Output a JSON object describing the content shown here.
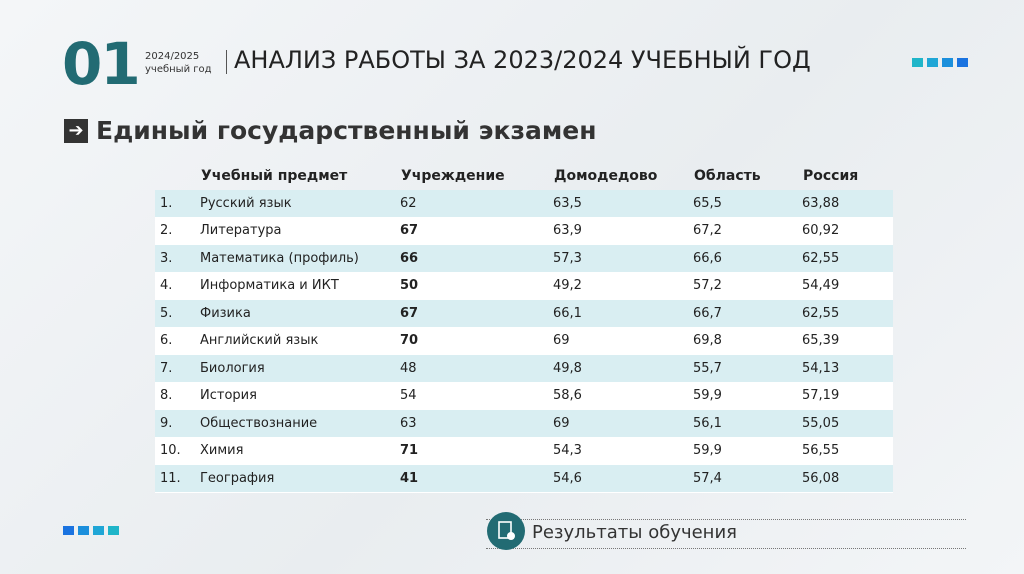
{
  "header": {
    "number": "01",
    "year": "2024/2025",
    "year_caption": "учебный год",
    "title": "АНАЛИЗ РАБОТЫ ЗА 2023/2024 УЧЕБНЫЙ ГОД"
  },
  "section_title": "Единый государственный экзамен",
  "table": {
    "columns": [
      "Учебный предмет",
      "Учреждение",
      "Домодедово",
      "Область",
      "Россия"
    ],
    "rows": [
      {
        "cells": [
          "1.",
          "Русский язык",
          "62",
          "63,5",
          "65,5",
          "63,88"
        ],
        "bold": false
      },
      {
        "cells": [
          "2.",
          "Литература",
          "67",
          "63,9",
          "67,2",
          "60,92"
        ],
        "bold": true
      },
      {
        "cells": [
          "3.",
          "Математика (профиль)",
          "66",
          "57,3",
          "66,6",
          "62,55"
        ],
        "bold": true
      },
      {
        "cells": [
          "4.",
          "Информатика и ИКТ",
          "50",
          "49,2",
          "57,2",
          "54,49"
        ],
        "bold": true
      },
      {
        "cells": [
          "5.",
          "Физика",
          "67",
          "66,1",
          "66,7",
          "62,55"
        ],
        "bold": true
      },
      {
        "cells": [
          "6.",
          "Английский язык",
          "70",
          "69",
          "69,8",
          "65,39"
        ],
        "bold": true
      },
      {
        "cells": [
          "7.",
          "Биология",
          "48",
          "49,8",
          "55,7",
          "54,13"
        ],
        "bold": false
      },
      {
        "cells": [
          "8.",
          "История",
          "54",
          "58,6",
          "59,9",
          "57,19"
        ],
        "bold": false
      },
      {
        "cells": [
          "9.",
          "Обществознание",
          "63",
          "69",
          "56,1",
          "55,05"
        ],
        "bold": false
      },
      {
        "cells": [
          "10.",
          "Химия",
          "71",
          "54,3",
          "59,9",
          "56,55"
        ],
        "bold": true
      },
      {
        "cells": [
          "11.",
          "География",
          "41",
          "54,6",
          "57,4",
          "56,08"
        ],
        "bold": true
      }
    ]
  },
  "footer": {
    "label": "Результаты обучения"
  }
}
